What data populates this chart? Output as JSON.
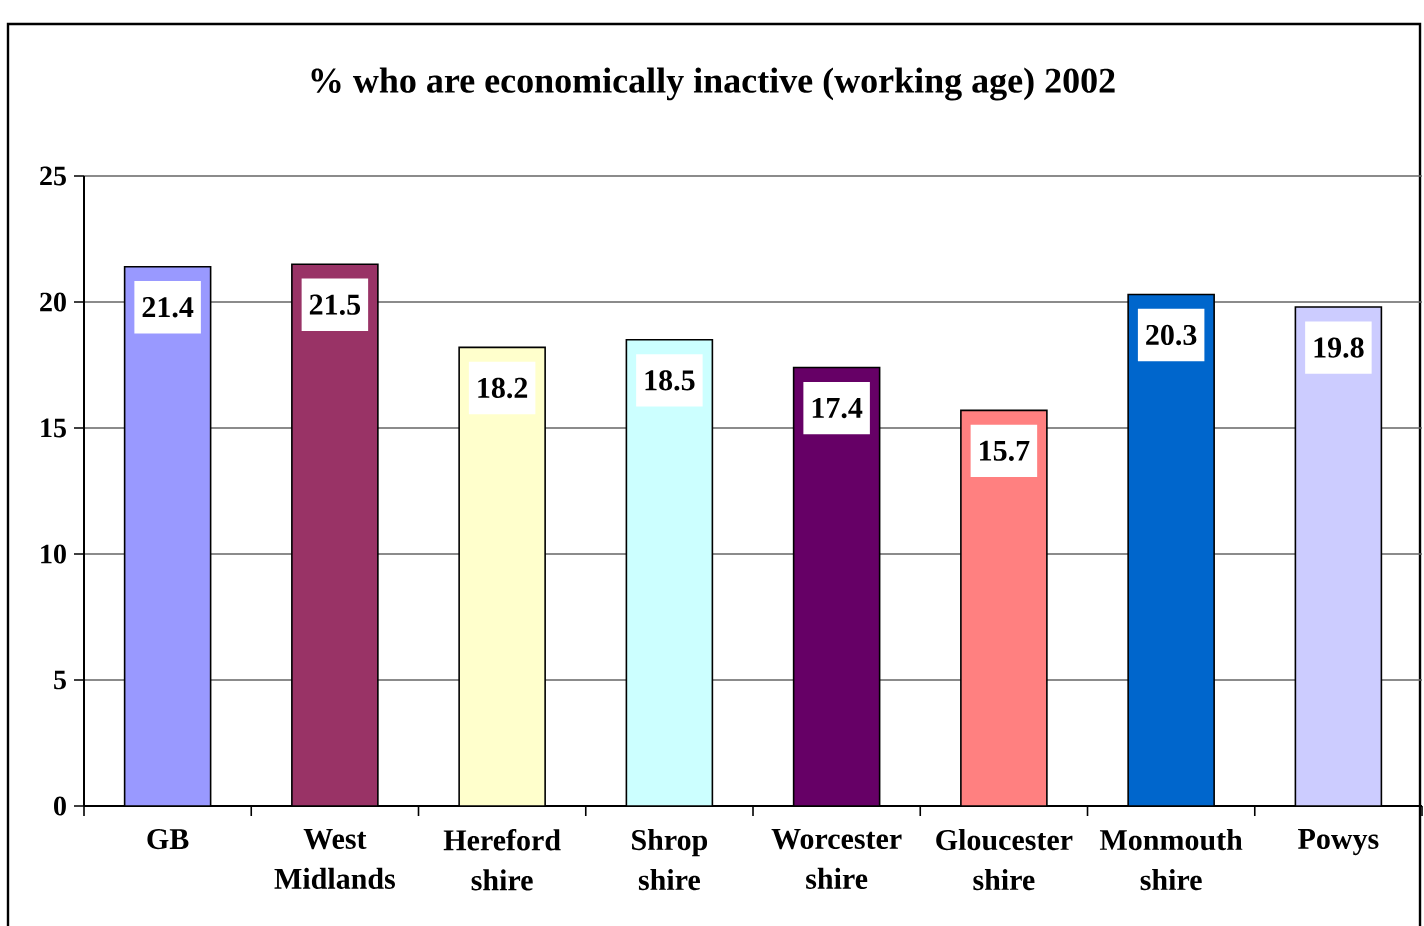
{
  "chart_data": {
    "type": "bar",
    "title": "% who are economically inactive (working age) 2002",
    "categories": [
      "GB",
      "West Midlands",
      "Hereford shire",
      "Shrop shire",
      "Worcester shire",
      "Gloucester shire",
      "Monmouth shire",
      "Powys"
    ],
    "values": [
      21.4,
      21.5,
      18.2,
      18.5,
      17.4,
      15.7,
      20.3,
      19.8
    ],
    "colors": [
      "#9999ff",
      "#993366",
      "#ffffcc",
      "#ccffff",
      "#660066",
      "#ff8080",
      "#0066cc",
      "#ccccff"
    ],
    "ylim": [
      0,
      25
    ],
    "yticks": [
      0,
      5,
      10,
      15,
      20,
      25
    ],
    "grid": "y",
    "data_labels": true
  }
}
